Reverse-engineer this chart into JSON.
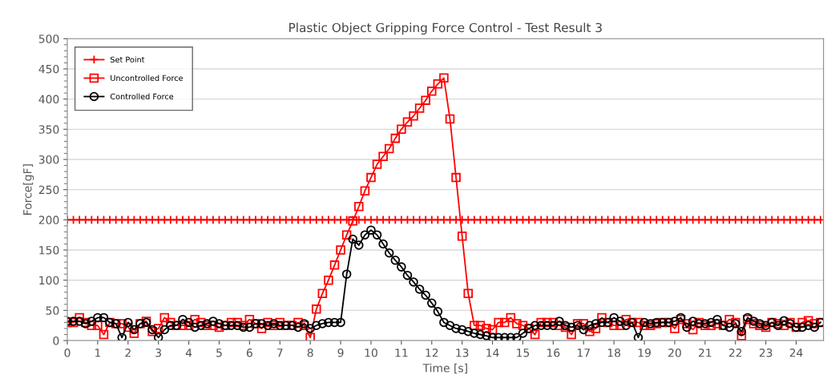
{
  "chart_data": {
    "type": "line",
    "title": "Plastic Object Gripping Force Control - Test Result 3",
    "xlabel": "Time [s]",
    "ylabel": "Force[gF]",
    "x": [
      0,
      0.2,
      0.4,
      0.6,
      0.8,
      1,
      1.2,
      1.4,
      1.6,
      1.8,
      2,
      2.2,
      2.4,
      2.6,
      2.8,
      3,
      3.2,
      3.4,
      3.6,
      3.8,
      4,
      4.2,
      4.4,
      4.6,
      4.8,
      5,
      5.2,
      5.4,
      5.6,
      5.8,
      6,
      6.2,
      6.4,
      6.6,
      6.8,
      7,
      7.2,
      7.4,
      7.6,
      7.8,
      8,
      8.2,
      8.4,
      8.6,
      8.8,
      9,
      9.2,
      9.4,
      9.6,
      9.8,
      10,
      10.2,
      10.4,
      10.6,
      10.8,
      11,
      11.2,
      11.4,
      11.6,
      11.8,
      12,
      12.2,
      12.4,
      12.6,
      12.8,
      13,
      13.2,
      13.4,
      13.6,
      13.8,
      14,
      14.2,
      14.4,
      14.6,
      14.8,
      15,
      15.2,
      15.4,
      15.6,
      15.8,
      16,
      16.2,
      16.4,
      16.6,
      16.8,
      17,
      17.2,
      17.4,
      17.6,
      17.8,
      18,
      18.2,
      18.4,
      18.6,
      18.8,
      19,
      19.2,
      19.4,
      19.6,
      19.8,
      20,
      20.2,
      20.4,
      20.6,
      20.8,
      21,
      21.2,
      21.4,
      21.6,
      21.8,
      22,
      22.2,
      22.4,
      22.6,
      22.8,
      23,
      23.2,
      23.4,
      23.6,
      23.8,
      24,
      24.2,
      24.4,
      24.6,
      24.8
    ],
    "series": [
      {
        "name": "Set Point",
        "color": "#ff0000",
        "marker": "cross",
        "values": [
          200,
          200,
          200,
          200,
          200,
          200,
          200,
          200,
          200,
          200,
          200,
          200,
          200,
          200,
          200,
          200,
          200,
          200,
          200,
          200,
          200,
          200,
          200,
          200,
          200,
          200,
          200,
          200,
          200,
          200,
          200,
          200,
          200,
          200,
          200,
          200,
          200,
          200,
          200,
          200,
          200,
          200,
          200,
          200,
          200,
          200,
          200,
          200,
          200,
          200,
          200,
          200,
          200,
          200,
          200,
          200,
          200,
          200,
          200,
          200,
          200,
          200,
          200,
          200,
          200,
          200,
          200,
          200,
          200,
          200,
          200,
          200,
          200,
          200,
          200,
          200,
          200,
          200,
          200,
          200,
          200,
          200,
          200,
          200,
          200,
          200,
          200,
          200,
          200,
          200,
          200,
          200,
          200,
          200,
          200,
          200,
          200,
          200,
          200,
          200,
          200,
          200,
          200,
          200,
          200,
          200,
          200,
          200,
          200,
          200,
          200,
          200,
          200,
          200,
          200,
          200,
          200,
          200,
          200,
          200,
          200,
          200,
          200,
          200,
          200
        ]
      },
      {
        "name": "Uncontrolled Force",
        "color": "#ff0000",
        "marker": "square",
        "values": [
          30,
          30,
          38,
          30,
          25,
          25,
          10,
          30,
          28,
          28,
          22,
          12,
          28,
          32,
          15,
          20,
          38,
          30,
          25,
          25,
          25,
          35,
          30,
          25,
          25,
          22,
          25,
          30,
          30,
          25,
          35,
          28,
          20,
          30,
          25,
          30,
          25,
          25,
          30,
          25,
          5,
          52,
          78,
          100,
          125,
          150,
          175,
          198,
          222,
          248,
          270,
          292,
          305,
          318,
          335,
          350,
          362,
          372,
          385,
          398,
          413,
          425,
          435,
          367,
          270,
          173,
          78,
          25,
          25,
          20,
          18,
          30,
          30,
          38,
          28,
          25,
          20,
          10,
          30,
          30,
          30,
          25,
          22,
          10,
          28,
          28,
          15,
          20,
          38,
          30,
          25,
          25,
          35,
          30,
          30,
          25,
          25,
          28,
          30,
          30,
          20,
          35,
          28,
          18,
          30,
          25,
          25,
          28,
          25,
          35,
          30,
          8,
          35,
          28,
          25,
          22,
          30,
          28,
          25,
          30,
          22,
          30,
          33,
          28,
          30
        ]
      },
      {
        "name": "Controlled Force",
        "color": "#000000",
        "marker": "circle",
        "values": [
          32,
          32,
          32,
          28,
          32,
          38,
          38,
          30,
          28,
          5,
          30,
          18,
          28,
          30,
          18,
          5,
          18,
          25,
          25,
          35,
          30,
          22,
          25,
          28,
          32,
          28,
          25,
          25,
          25,
          22,
          22,
          28,
          28,
          25,
          28,
          25,
          25,
          25,
          22,
          28,
          20,
          25,
          28,
          30,
          30,
          30,
          110,
          168,
          158,
          175,
          183,
          175,
          160,
          145,
          133,
          122,
          108,
          97,
          85,
          75,
          62,
          48,
          30,
          25,
          20,
          18,
          15,
          12,
          10,
          8,
          5,
          5,
          5,
          5,
          5,
          12,
          20,
          25,
          25,
          25,
          25,
          32,
          25,
          22,
          25,
          18,
          25,
          28,
          30,
          30,
          38,
          32,
          25,
          30,
          5,
          30,
          28,
          30,
          30,
          30,
          32,
          38,
          22,
          32,
          28,
          28,
          30,
          35,
          25,
          22,
          28,
          15,
          38,
          32,
          28,
          25,
          30,
          25,
          33,
          28,
          22,
          22,
          25,
          22,
          30
        ]
      }
    ],
    "xlim": [
      0,
      24.9
    ],
    "xticks": [
      0,
      1,
      2,
      3,
      4,
      5,
      6,
      7,
      8,
      9,
      10,
      11,
      12,
      13,
      14,
      15,
      16,
      17,
      18,
      19,
      20,
      21,
      22,
      23,
      24
    ],
    "ylim": [
      0,
      500
    ],
    "yticks": [
      0,
      50,
      100,
      150,
      200,
      250,
      300,
      350,
      400,
      450,
      500
    ],
    "grid": "y",
    "legend": "top left",
    "line_style": "solid"
  }
}
